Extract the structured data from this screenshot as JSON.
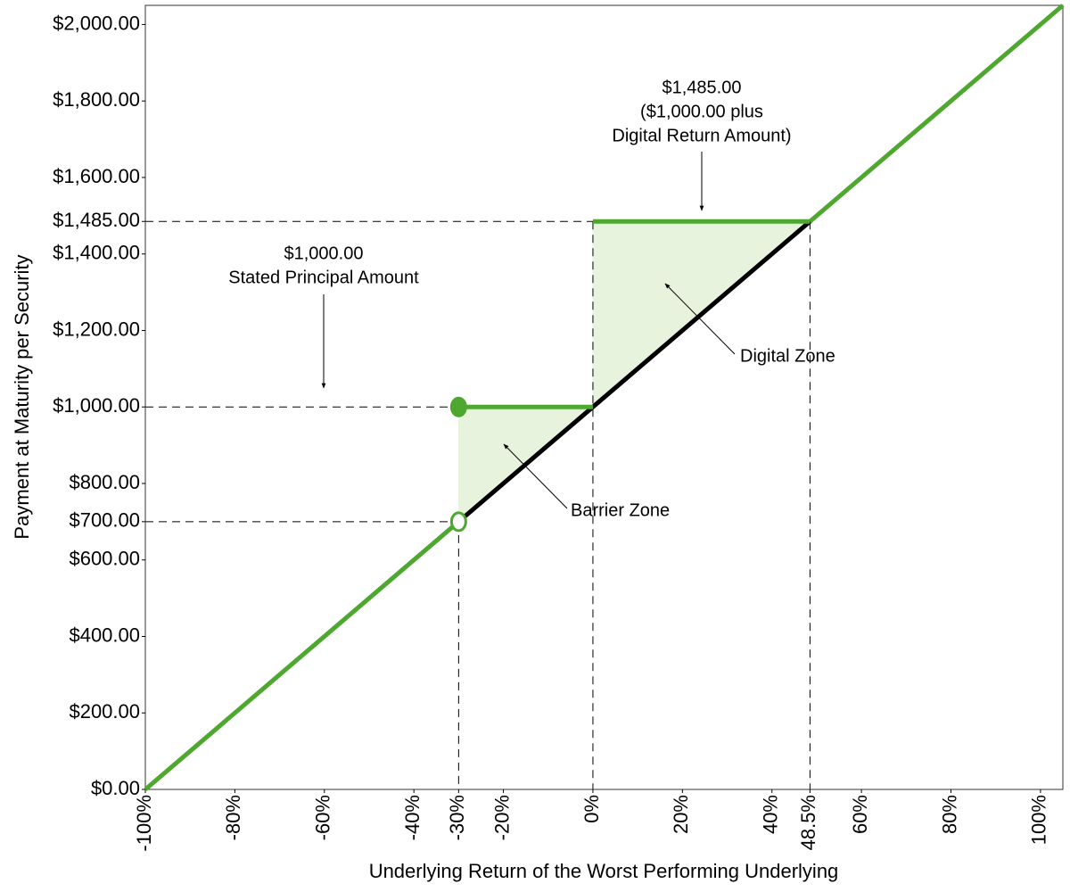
{
  "chart_data": {
    "type": "line",
    "xlabel": "Underlying Return of the Worst Performing Underlying",
    "ylabel": "Payment at Maturity per Security",
    "xlim": [
      -100,
      105
    ],
    "ylim": [
      0,
      2050
    ],
    "xticks": [
      {
        "value": -100,
        "label": "-100%"
      },
      {
        "value": -80,
        "label": "-80%"
      },
      {
        "value": -60,
        "label": "-60%"
      },
      {
        "value": -40,
        "label": "-40%"
      },
      {
        "value": -30,
        "label": "-30%"
      },
      {
        "value": -20,
        "label": "-20%"
      },
      {
        "value": 0,
        "label": "0%"
      },
      {
        "value": 20,
        "label": "20%"
      },
      {
        "value": 40,
        "label": "40%"
      },
      {
        "value": 48.5,
        "label": "48.5%"
      },
      {
        "value": 60,
        "label": "60%"
      },
      {
        "value": 80,
        "label": "80%"
      },
      {
        "value": 100,
        "label": "100%"
      }
    ],
    "yticks": [
      {
        "value": 0,
        "label": "$0.00"
      },
      {
        "value": 200,
        "label": "$200.00"
      },
      {
        "value": 400,
        "label": "$400.00"
      },
      {
        "value": 600,
        "label": "$600.00"
      },
      {
        "value": 700,
        "label": "$700.00"
      },
      {
        "value": 800,
        "label": "$800.00"
      },
      {
        "value": 1000,
        "label": "$1,000.00"
      },
      {
        "value": 1200,
        "label": "$1,200.00"
      },
      {
        "value": 1400,
        "label": "$1,400.00"
      },
      {
        "value": 1485,
        "label": "$1,485.00"
      },
      {
        "value": 1600,
        "label": "$1,600.00"
      },
      {
        "value": 1800,
        "label": "$1,800.00"
      },
      {
        "value": 2000,
        "label": "$2,000.00"
      }
    ],
    "zone_color": "#e8f3de",
    "zones": [
      {
        "label": "Barrier Zone",
        "x": [
          -30,
          0
        ],
        "upper": [
          1000,
          1000
        ],
        "lower": [
          700,
          1000
        ]
      },
      {
        "label": "Digital Zone",
        "x": [
          0,
          48.5
        ],
        "upper": [
          1485,
          1485
        ],
        "lower": [
          1000,
          1485
        ]
      }
    ],
    "series": [
      {
        "color": "#000000",
        "x": [
          -30,
          48.5
        ],
        "values": [
          700,
          1485
        ]
      },
      {
        "color": "#4ea72e",
        "x": [
          -100,
          -30
        ],
        "values": [
          0,
          700
        ]
      },
      {
        "color": "#4ea72e",
        "x": [
          -30,
          0
        ],
        "values": [
          1000,
          1000
        ]
      },
      {
        "color": "#4ea72e",
        "x": [
          0,
          48.5
        ],
        "values": [
          1485,
          1485
        ]
      },
      {
        "color": "#4ea72e",
        "x": [
          48.5,
          105
        ],
        "values": [
          1485,
          2050
        ]
      }
    ],
    "markers": [
      {
        "x": -30,
        "y": 1000,
        "filled": true,
        "color": "#4ea72e"
      },
      {
        "x": -30,
        "y": 700,
        "filled": false,
        "color": "#4ea72e"
      }
    ],
    "hguides": [
      {
        "x": -30,
        "y": 700
      },
      {
        "x": -30,
        "y": 1000
      },
      {
        "x": 0,
        "y": 1485
      }
    ],
    "vguides": [
      {
        "x": -30,
        "y": 700
      },
      {
        "x": 0,
        "y": 1485
      },
      {
        "x": 48.5,
        "y": 1485
      }
    ],
    "annotations": [
      {
        "lines": [
          "$1,485.00",
          "($1,000.00 plus",
          "Digital Return Amount)"
        ]
      },
      {
        "lines": [
          "$1,000.00",
          "Stated Principal Amount"
        ]
      }
    ]
  }
}
